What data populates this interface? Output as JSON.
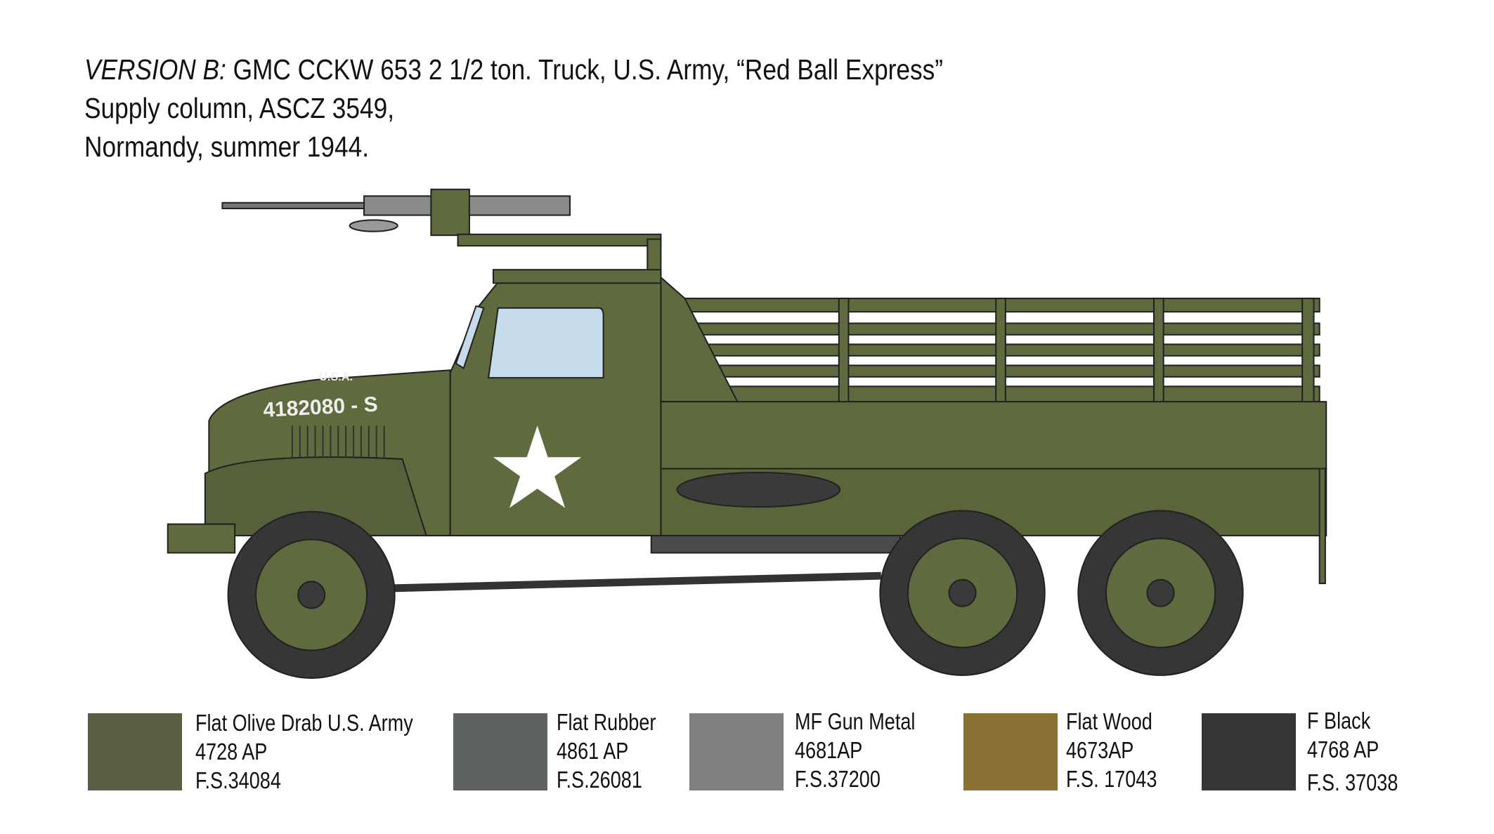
{
  "title": {
    "version_label": "VERSION B:",
    "line1": " GMC CCKW 653 2 1/2 ton. Truck, U.S. Army, “Red Ball Express”",
    "line2": "Supply column, ASCZ 3549,",
    "line3": "Normandy, summer 1944."
  },
  "vehicle_markings": {
    "hood_top": "U.S.A.",
    "hood_number": "4182080 - S"
  },
  "colors": {
    "vehicle_olive": "#5f6a3e",
    "glass": "#c6dcea"
  },
  "paints": [
    {
      "name": "Flat Olive Drab U.S. Army",
      "code": "4728 AP",
      "fs": "F.S.34084",
      "color": "#5b5e42"
    },
    {
      "name": "Flat Rubber",
      "code": "4861 AP",
      "fs": "F.S.26081",
      "color": "#5d6260"
    },
    {
      "name": "MF Gun Metal",
      "code": "4681AP",
      "fs": "F.S.37200",
      "color": "#7f7f7f"
    },
    {
      "name": "Flat Wood",
      "code": "4673AP",
      "fs": "F.S. 17043",
      "color": "#8a7237"
    },
    {
      "name": "F Black",
      "code": "4768 AP",
      "fs": "F.S. 37038",
      "color": "#363636"
    }
  ]
}
